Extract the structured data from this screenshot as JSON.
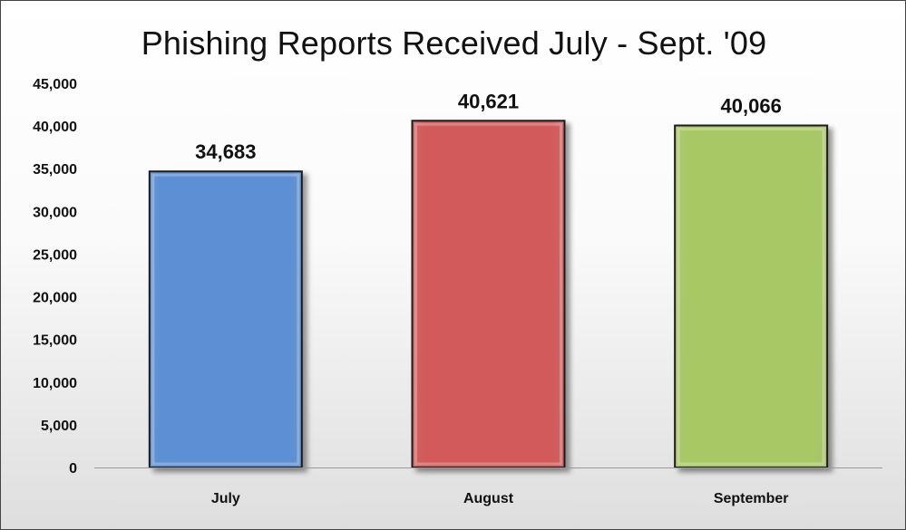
{
  "chart_data": {
    "type": "bar",
    "title": "Phishing Reports Received July - Sept. '09",
    "xlabel": "",
    "ylabel": "",
    "categories": [
      "July",
      "August",
      "September"
    ],
    "values": [
      34683,
      40621,
      40066
    ],
    "value_labels": [
      "34,683",
      "40,621",
      "40,066"
    ],
    "ylim": [
      0,
      45000
    ],
    "y_ticks": [
      0,
      5000,
      10000,
      15000,
      20000,
      25000,
      30000,
      35000,
      40000,
      45000
    ],
    "y_tick_labels": [
      "0",
      "5,000",
      "10,000",
      "15,000",
      "20,000",
      "25,000",
      "30,000",
      "35,000",
      "40,000",
      "45,000"
    ],
    "colors": [
      "#5b8fd4",
      "#d25a5a",
      "#a8c865"
    ],
    "grid": false,
    "legend": "none"
  }
}
